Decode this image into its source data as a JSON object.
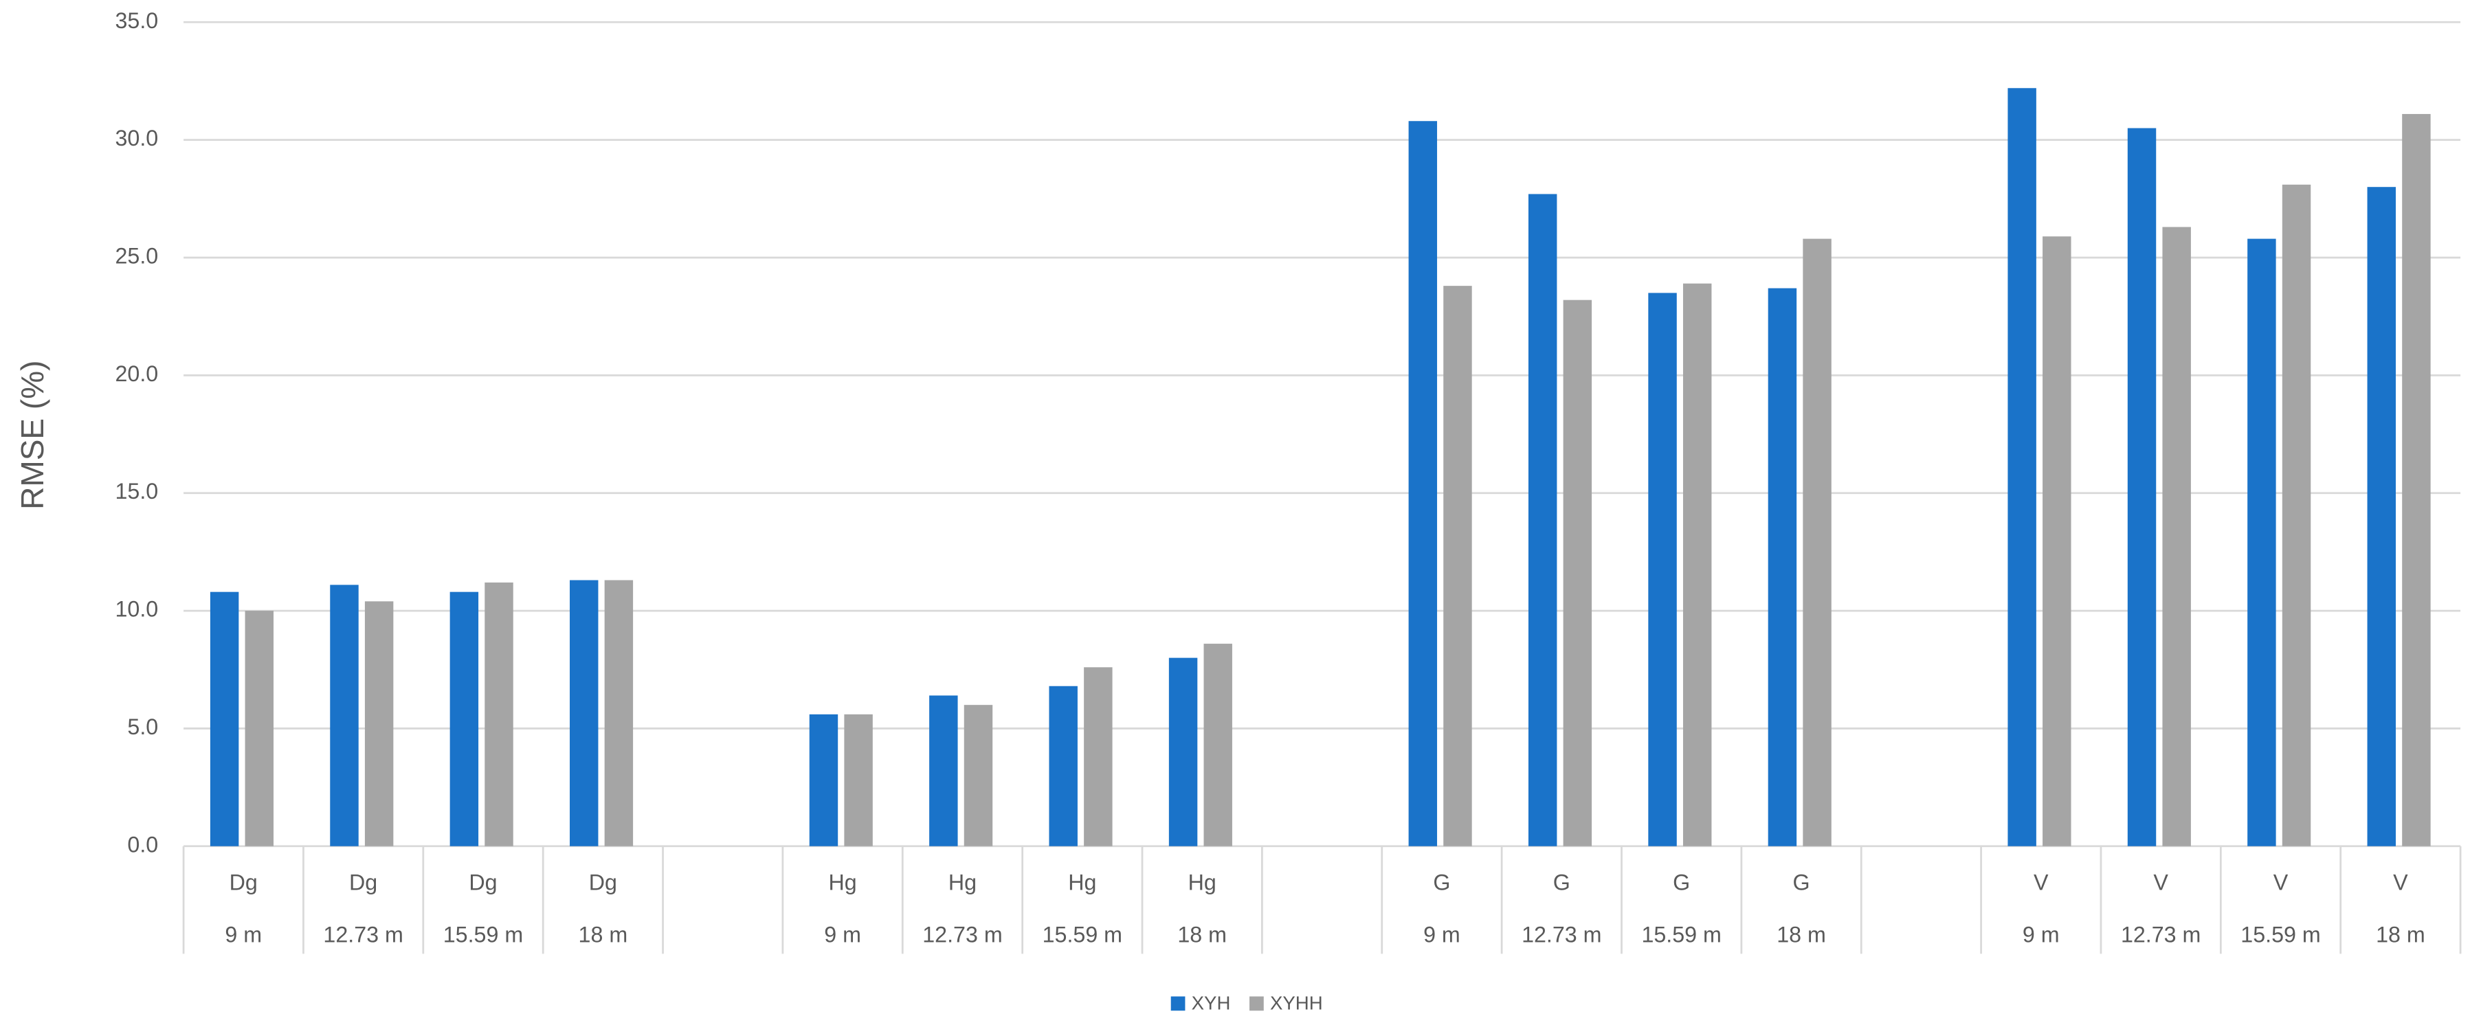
{
  "chart_data": {
    "type": "bar",
    "y_label": "RMSE (%)",
    "category_groups": [
      "Dg",
      "Dg",
      "Dg",
      "Dg",
      null,
      "Hg",
      "Hg",
      "Hg",
      "Hg",
      null,
      "G",
      "G",
      "G",
      "G",
      null,
      "V",
      "V",
      "V",
      "V"
    ],
    "categories": [
      "9 m",
      "12.73 m",
      "15.59 m",
      "18 m",
      null,
      "9 m",
      "12.73 m",
      "15.59 m",
      "18 m",
      null,
      "9 m",
      "12.73 m",
      "15.59 m",
      "18 m",
      null,
      "9 m",
      "12.73 m",
      "15.59 m",
      "18 m"
    ],
    "series": [
      {
        "name": "XYH",
        "color": "#1a73c9",
        "values": [
          10.8,
          11.1,
          10.8,
          11.3,
          null,
          5.6,
          6.4,
          6.8,
          8.0,
          null,
          30.8,
          27.7,
          23.5,
          23.7,
          null,
          32.2,
          30.5,
          25.8,
          28.0
        ]
      },
      {
        "name": "XYHH",
        "color": "#a5a5a5",
        "values": [
          10.0,
          10.4,
          11.2,
          11.3,
          null,
          5.6,
          6.0,
          7.6,
          8.6,
          null,
          23.8,
          23.2,
          23.9,
          25.8,
          null,
          25.9,
          26.3,
          28.1,
          31.1
        ]
      }
    ],
    "ylim": [
      0,
      35
    ],
    "yticks": [
      {
        "value": 0,
        "label": "0.0"
      },
      {
        "value": 5,
        "label": "5.0"
      },
      {
        "value": 10,
        "label": "10.0"
      },
      {
        "value": 15,
        "label": "15.0"
      },
      {
        "value": 20,
        "label": "20.0"
      },
      {
        "value": 25,
        "label": "25.0"
      },
      {
        "value": 30,
        "label": "30.0"
      },
      {
        "value": 35,
        "label": "35.0"
      }
    ],
    "grid": true,
    "legend": "bottom"
  }
}
